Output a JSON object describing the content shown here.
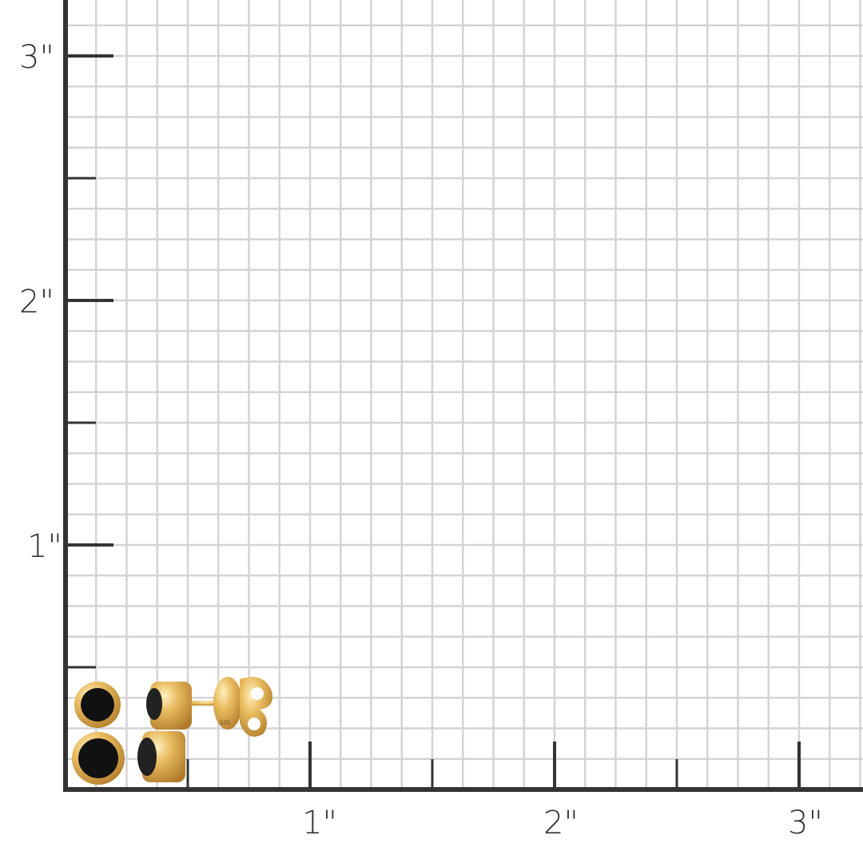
{
  "unit": "inch",
  "grid_subdivisions_per_unit": 8,
  "y_axis": {
    "labels": [
      "1\"",
      "2\"",
      "3\""
    ]
  },
  "x_axis": {
    "labels": [
      "1\"",
      "2\"",
      "3\""
    ]
  },
  "colors": {
    "grid": "#d4d4d4",
    "axis": "#333333",
    "gold": "#e0b45a",
    "stone": "#111111"
  },
  "product": {
    "name": "black stone double bezel stud earrings",
    "stamp": "585"
  }
}
